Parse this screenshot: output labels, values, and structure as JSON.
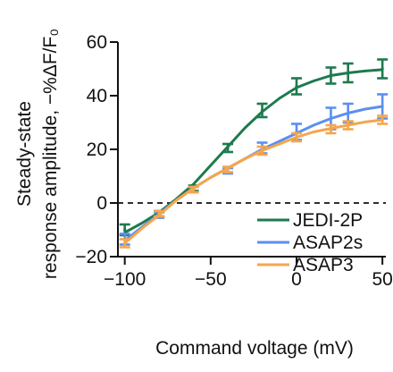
{
  "chart_data": {
    "type": "line",
    "xlabel": "Command voltage (mV)",
    "ylabel_line1": "Steady-state",
    "ylabel_line2": "response amplitude, −%ΔF/F₀",
    "xlim": [
      -104,
      52
    ],
    "ylim": [
      -20,
      60
    ],
    "x_ticks": [
      -100,
      -50,
      0,
      50
    ],
    "x_tick_labels": [
      "−100",
      "−50",
      "0",
      "50"
    ],
    "y_ticks": [
      -20,
      0,
      20,
      40,
      60
    ],
    "y_tick_labels": [
      "−20",
      "0",
      "20",
      "40",
      "60"
    ],
    "zero_line": "dashed",
    "grid": false,
    "legend_position": "lower-right",
    "x": [
      -100,
      -80,
      -60,
      -40,
      -20,
      0,
      20,
      30,
      50
    ],
    "series": [
      {
        "name": "JEDI-2P",
        "color": "#1e7a4e",
        "values": [
          -10,
          -4,
          5.5,
          20.5,
          34.5,
          43.5,
          47.5,
          48.5,
          50
        ],
        "errors": [
          2,
          1,
          1,
          1.5,
          2.5,
          3,
          3,
          3.5,
          3.5
        ],
        "fit": [
          [
            -100,
            -11
          ],
          [
            -90,
            -7.5
          ],
          [
            -80,
            -3.5
          ],
          [
            -70,
            1.5
          ],
          [
            -60,
            7
          ],
          [
            -50,
            14
          ],
          [
            -40,
            21
          ],
          [
            -30,
            28
          ],
          [
            -20,
            34
          ],
          [
            -10,
            39
          ],
          [
            0,
            43
          ],
          [
            10,
            45.5
          ],
          [
            20,
            47.5
          ],
          [
            30,
            48.5
          ],
          [
            40,
            49.2
          ],
          [
            50,
            49.7
          ]
        ]
      },
      {
        "name": "ASAP2s",
        "color": "#5b8ff0",
        "values": [
          -13.5,
          -4.5,
          5,
          12,
          20.5,
          26.5,
          31.5,
          33.5,
          36
        ],
        "errors": [
          2,
          1,
          1,
          1,
          2,
          3,
          4,
          3.5,
          4.5
        ],
        "fit": [
          [
            -100,
            -14
          ],
          [
            -90,
            -9
          ],
          [
            -80,
            -4
          ],
          [
            -70,
            1
          ],
          [
            -60,
            5.5
          ],
          [
            -50,
            9.5
          ],
          [
            -40,
            13
          ],
          [
            -30,
            16.5
          ],
          [
            -20,
            20
          ],
          [
            -10,
            23
          ],
          [
            0,
            26
          ],
          [
            10,
            29
          ],
          [
            20,
            31.5
          ],
          [
            30,
            33.5
          ],
          [
            40,
            35
          ],
          [
            50,
            36
          ]
        ]
      },
      {
        "name": "ASAP3",
        "color": "#f5a64d",
        "values": [
          -15,
          -4,
          5,
          12.5,
          19.5,
          24.5,
          27.5,
          29,
          31
        ],
        "errors": [
          1.5,
          1,
          1,
          1,
          1.5,
          1.5,
          1.5,
          1.5,
          1.5
        ],
        "fit": [
          [
            -100,
            -15
          ],
          [
            -90,
            -9.5
          ],
          [
            -80,
            -4.5
          ],
          [
            -70,
            1
          ],
          [
            -60,
            5.5
          ],
          [
            -50,
            9.5
          ],
          [
            -40,
            13
          ],
          [
            -30,
            16.5
          ],
          [
            -20,
            19.5
          ],
          [
            -10,
            22
          ],
          [
            0,
            24.5
          ],
          [
            10,
            26.5
          ],
          [
            20,
            27.8
          ],
          [
            30,
            29
          ],
          [
            40,
            30.2
          ],
          [
            50,
            31
          ]
        ]
      }
    ]
  }
}
